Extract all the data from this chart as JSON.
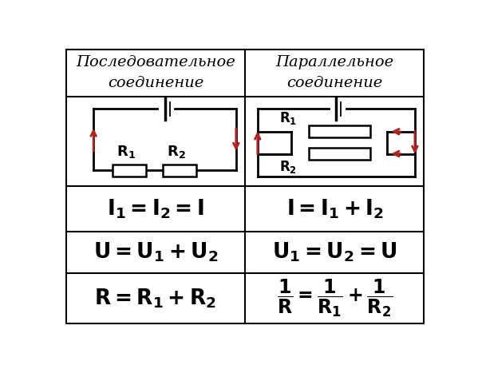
{
  "col1_header": "Последовательное\nсоединение",
  "col2_header": "Параллельное\nсоединение",
  "bg_color": "#ffffff",
  "line_color": "#000000",
  "arrow_color": "#b22222"
}
